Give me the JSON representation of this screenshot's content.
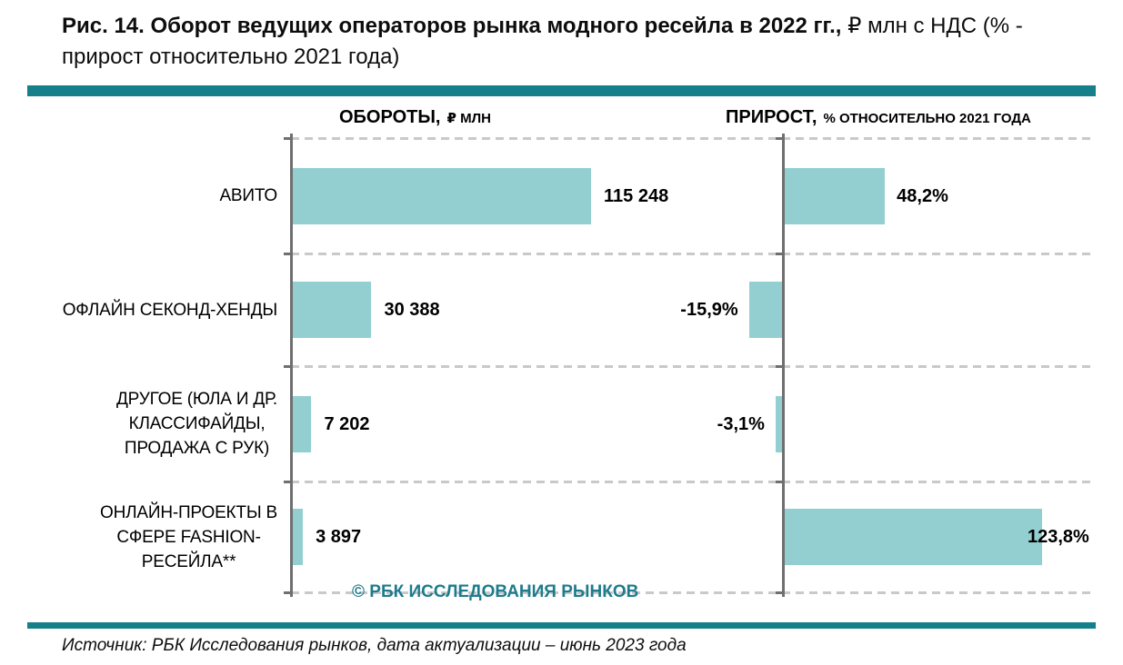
{
  "title": {
    "bold": "Рис. 14. Оборот ведущих операторов рынка модного ресейла в 2022 гг.,",
    "regular": " ₽ млн с НДС (% - прирост относительно 2021 года)"
  },
  "headers": {
    "left": {
      "main": "ОБОРОТЫ,",
      "sub": "₽ МЛН"
    },
    "right": {
      "main": "ПРИРОСТ,",
      "sub": "% ОТНОСИТЕЛЬНО 2021 ГОДА"
    }
  },
  "chart_data": {
    "type": "bar",
    "orientation": "horizontal",
    "title": "Оборот ведущих операторов рынка модного ресейла в 2022 гг., ₽ млн с НДС",
    "categories": [
      "АВИТО",
      "ОФЛАЙН СЕКОНД-ХЕНДЫ",
      "ДРУГОЕ (ЮЛА И ДР. КЛАССИФАЙДЫ, ПРОДАЖА С РУК)",
      "ОНЛАЙН-ПРОЕКТЫ В СФЕРЕ FASHION-РЕСЕЙЛА**"
    ],
    "category_lines": [
      [
        "АВИТО"
      ],
      [
        "ОФЛАЙН СЕКОНД-ХЕНДЫ"
      ],
      [
        "ДРУГОЕ (ЮЛА И ДР.",
        "КЛАССИФАЙДЫ,",
        "ПРОДАЖА С РУК)"
      ],
      [
        "ОНЛАЙН-ПРОЕКТЫ В",
        "СФЕРЕ FASHION-",
        "РЕСЕЙЛА**"
      ]
    ],
    "series": [
      {
        "name": "ОБОРОТЫ, ₽ млн",
        "values": [
          115248,
          30388,
          7202,
          3897
        ],
        "labels": [
          "115 248",
          "30 388",
          "7 202",
          "3 897"
        ]
      },
      {
        "name": "ПРИРОСТ, % относительно 2021 года",
        "values": [
          48.2,
          -15.9,
          -3.1,
          123.8
        ],
        "labels": [
          "48,2%",
          "-15,9%",
          "-3,1%",
          "123,8%"
        ]
      }
    ],
    "layout": {
      "grid": "dashed horizontal row separators",
      "legend": "none",
      "value_labels": "outside end",
      "panels": [
        "turnover",
        "growth"
      ]
    }
  },
  "footer": {
    "copyright": "© РБК ИССЛЕДОВАНИЯ РЫНКОВ",
    "source": "Источник: РБК Исследования рынков, дата актуализации – июнь 2023 года"
  },
  "colors": {
    "bar_fill": "#93cfd0",
    "accent_teal": "#16808a",
    "copyright_teal": "#1e7b8c",
    "axis_gray": "#6f6f6f",
    "gridline_gray": "#c9c9c9"
  }
}
